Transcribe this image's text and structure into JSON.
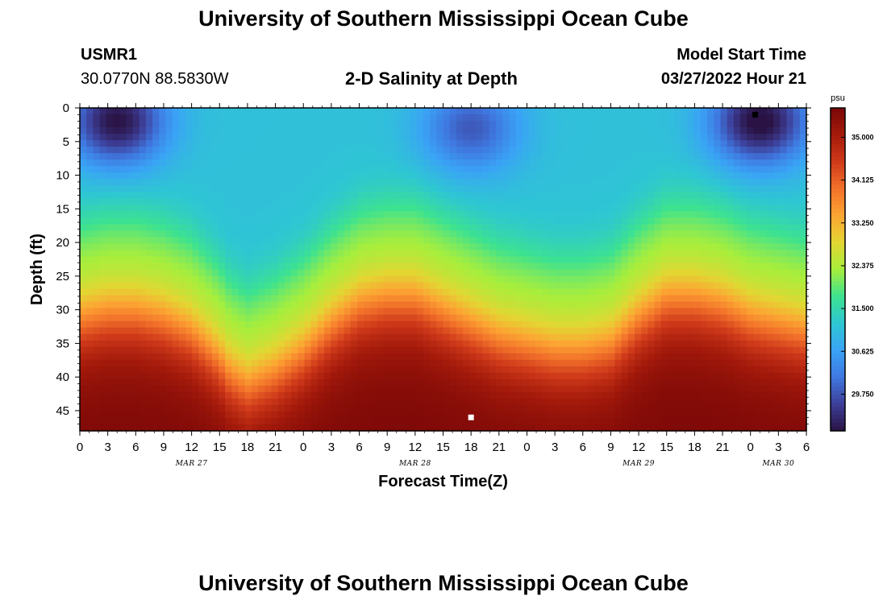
{
  "page": {
    "title": "University of Southern Mississippi Ocean Cube",
    "station_id": "USMR1",
    "location": "30.0770N  88.5830W",
    "subtitle": "2-D Salinity at Depth",
    "start_label": "Model Start Time",
    "start_value": "03/27/2022 Hour 21",
    "footer_title": "University of Southern Mississippi Ocean Cube"
  },
  "chart_data": {
    "type": "heatmap",
    "title": "2-D Salinity at Depth",
    "xlabel": "Forecast Time(Z)",
    "ylabel": "Depth (ft)",
    "x_unit": "hours since 03/27/2022 00Z",
    "xlim": [
      0,
      78
    ],
    "ylim": [
      0,
      48
    ],
    "y_reversed": true,
    "x_tick_labels": [
      "0",
      "3",
      "6",
      "9",
      "12",
      "15",
      "18",
      "21",
      "0",
      "3",
      "6",
      "9",
      "12",
      "15",
      "18",
      "21",
      "0",
      "3",
      "6",
      "9",
      "12",
      "15",
      "18",
      "21",
      "0",
      "3",
      "6"
    ],
    "date_labels": [
      "MAR 27",
      "MAR 28",
      "MAR 29",
      "MAR 30"
    ],
    "date_label_positions_hours": [
      12,
      36,
      60,
      75
    ],
    "y_ticks": [
      0,
      5,
      10,
      15,
      20,
      25,
      30,
      35,
      40,
      45
    ],
    "colorbar": {
      "unit": "psu",
      "min": 29.0,
      "max": 35.6,
      "labels": [
        "35.000",
        "34.125",
        "33.250",
        "32.375",
        "31.500",
        "30.625",
        "29.750"
      ],
      "colors": [
        "#2a1344",
        "#3d3f99",
        "#3f78e0",
        "#3aa3f6",
        "#2ec7d2",
        "#3de290",
        "#a8ee3c",
        "#e3d633",
        "#fca533",
        "#f2712a",
        "#cf3a1a",
        "#a41a0b",
        "#7a0707"
      ]
    },
    "layers": {
      "description": "depth of color transitions by forecast hour",
      "hours": [
        0,
        3,
        6,
        9,
        12,
        15,
        16,
        18,
        21,
        24,
        27,
        30,
        33,
        36,
        39,
        42,
        45,
        48,
        51,
        54,
        57,
        60,
        63,
        66,
        69,
        72,
        75,
        78
      ],
      "halocline_center_ft": [
        30,
        29,
        29,
        30,
        32,
        36,
        38,
        40,
        38,
        35,
        31,
        28,
        27,
        27,
        29,
        31,
        33,
        34,
        35,
        35,
        34,
        30,
        27,
        27,
        28,
        30,
        31,
        32
      ]
    },
    "fresh_patches": [
      {
        "hour": 4,
        "depth": 2,
        "salinity": 29.1
      },
      {
        "hour": 42,
        "depth": 3,
        "salinity": 29.9
      },
      {
        "hour": 73,
        "depth": 2,
        "salinity": 29.0
      }
    ],
    "markers": [
      {
        "name": "min",
        "hour": 72.5,
        "depth": 1,
        "color": "#000000"
      },
      {
        "name": "max",
        "hour": 42,
        "depth": 46,
        "color": "#ffffff"
      }
    ]
  }
}
